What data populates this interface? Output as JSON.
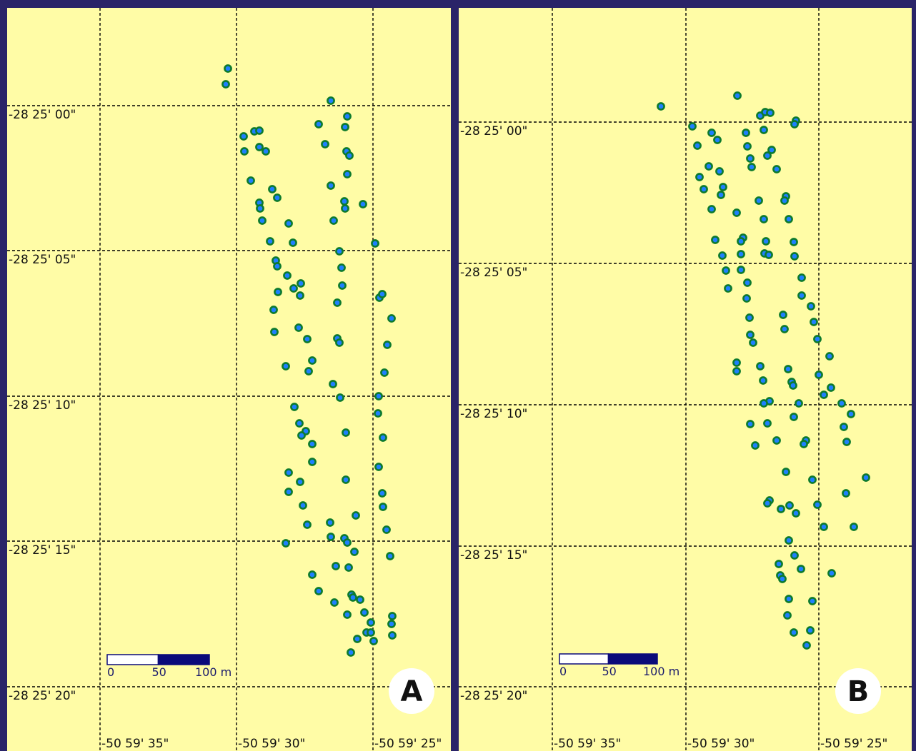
{
  "background_color": "#FFFCA6",
  "frame_color": "#2A2468",
  "point_fill": "#1E7FFF",
  "point_stroke": "#0D7A2C",
  "grid_color": "#000000",
  "scalebar": {
    "labels": [
      "0",
      "50",
      "100 m"
    ],
    "colors": [
      "#FFFFFF",
      "#0A0A7A"
    ]
  },
  "panels": [
    {
      "letter": "A",
      "lat_labels": [
        "-28 25' 00\"",
        "-28 25' 05\"",
        "-28 25' 10\"",
        "-28 25' 15\"",
        "-28 25' 20\""
      ],
      "lon_labels": [
        "-50 59' 35\"",
        "-50 59' 30\"",
        "-50 59' 25\""
      ]
    },
    {
      "letter": "B",
      "lat_labels": [
        "-28 25' 00\"",
        "-28 25' 05\"",
        "-28 25' 10\"",
        "-28 25' 15\"",
        "-28 25' 20\""
      ],
      "lon_labels": [
        "-50 59' 35\"",
        "-50 59' 30\"",
        "-50 59' 25\""
      ]
    }
  ]
}
